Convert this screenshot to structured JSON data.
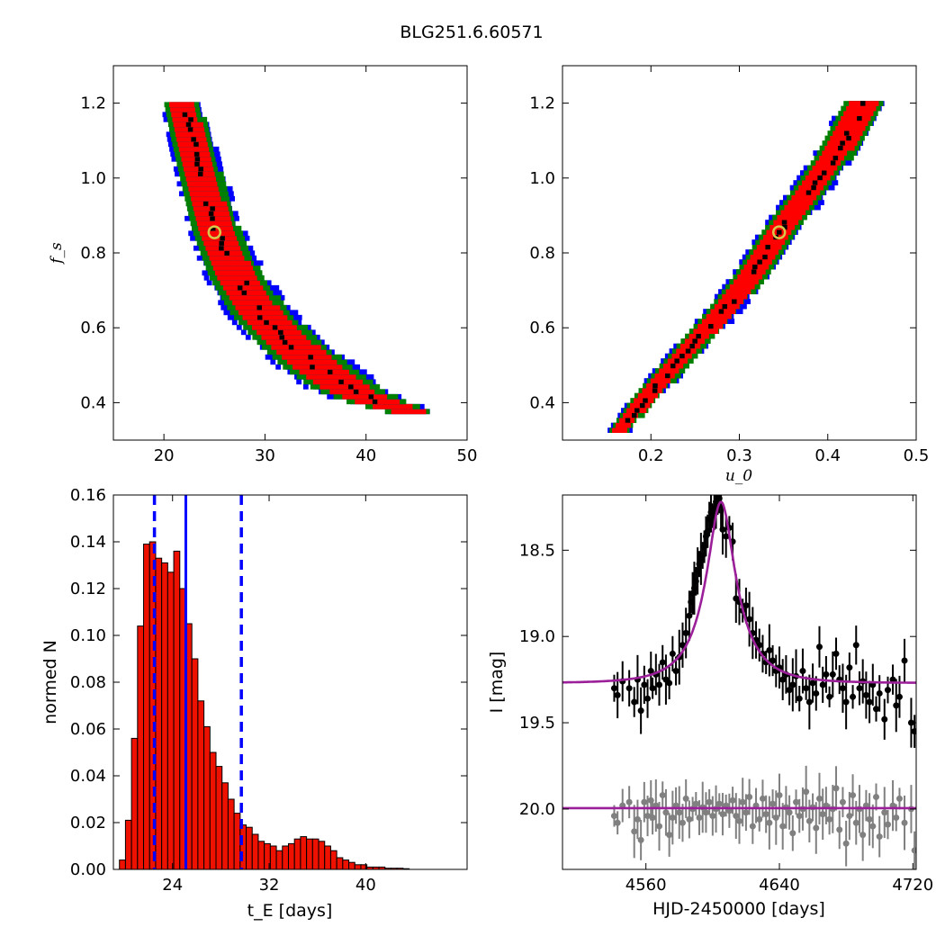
{
  "figure_title": "BLG251.6.60571",
  "chart_data": [
    {
      "type": "heatmap",
      "panel": "top-left",
      "xlabel": "",
      "ylabel": "f_s",
      "xlim": [
        15,
        50
      ],
      "ylim": [
        0.3,
        1.3
      ],
      "xticks": [
        "20",
        "30",
        "40",
        "50"
      ],
      "yticks": [
        "0.4",
        "0.6",
        "0.8",
        "1.0",
        "1.2"
      ],
      "best_fit": {
        "x": 25,
        "y": 0.855
      },
      "band": {
        "description_levels": [
          "blue",
          "green",
          "red",
          "black"
        ],
        "ridge_points": [
          [
            21.6,
            1.2
          ],
          [
            22.5,
            1.1
          ],
          [
            23.5,
            1.0
          ],
          [
            25,
            0.855
          ],
          [
            27,
            0.73
          ],
          [
            29.5,
            0.63
          ],
          [
            32.5,
            0.55
          ],
          [
            35,
            0.49
          ],
          [
            38,
            0.43
          ],
          [
            41,
            0.395
          ],
          [
            44,
            0.37
          ]
        ],
        "half_widths_x": [
          2.0,
          2.2,
          2.4,
          2.7,
          3.1,
          3.5,
          3.8,
          4.0,
          3.9,
          3.4,
          2.6
        ]
      },
      "colors": {
        "outer": "#0000ff",
        "mid": "#008000",
        "inner": "#ff0000",
        "core": "#000000",
        "marker": "#d8c84a"
      }
    },
    {
      "type": "heatmap",
      "panel": "top-right",
      "xlabel": "u_0",
      "ylabel": "",
      "xlim": [
        0.1,
        0.5
      ],
      "ylim": [
        0.3,
        1.3
      ],
      "xticks": [
        "0.2",
        "0.3",
        "0.4",
        "0.5"
      ],
      "yticks": [
        "0.4",
        "0.6",
        "0.8",
        "1.0",
        "1.2"
      ],
      "best_fit": {
        "x": 0.345,
        "y": 0.855
      },
      "band": {
        "ridge_points": [
          [
            0.163,
            0.32
          ],
          [
            0.19,
            0.4
          ],
          [
            0.22,
            0.48
          ],
          [
            0.25,
            0.56
          ],
          [
            0.28,
            0.64
          ],
          [
            0.31,
            0.73
          ],
          [
            0.345,
            0.855
          ],
          [
            0.375,
            0.95
          ],
          [
            0.405,
            1.05
          ],
          [
            0.44,
            1.2
          ]
        ],
        "half_widths_x": [
          0.012,
          0.016,
          0.018,
          0.019,
          0.02,
          0.021,
          0.022,
          0.023,
          0.024,
          0.025
        ]
      },
      "colors": {
        "outer": "#0000ff",
        "mid": "#008000",
        "inner": "#ff0000",
        "core": "#000000",
        "marker": "#d8c84a"
      }
    },
    {
      "type": "bar",
      "panel": "bottom-left",
      "xlabel": "t_E [days]",
      "ylabel": "normed N",
      "xlim": [
        19.1,
        48.4
      ],
      "ylim": [
        0,
        0.16
      ],
      "xticks": [
        "24",
        "32",
        "40"
      ],
      "yticks": [
        "0.00",
        "0.02",
        "0.04",
        "0.06",
        "0.08",
        "0.10",
        "0.12",
        "0.14",
        "0.16"
      ],
      "bin_start": 19.6,
      "bin_width": 0.5,
      "values": [
        0.004,
        0.021,
        0.056,
        0.104,
        0.139,
        0.14,
        0.133,
        0.131,
        0.127,
        0.136,
        0.12,
        0.105,
        0.09,
        0.072,
        0.061,
        0.05,
        0.044,
        0.037,
        0.03,
        0.024,
        0.019,
        0.018,
        0.015,
        0.012,
        0.011,
        0.01,
        0.008,
        0.01,
        0.011,
        0.013,
        0.014,
        0.013,
        0.013,
        0.012,
        0.01,
        0.008,
        0.005,
        0.004,
        0.003,
        0.002,
        0.002,
        0.001,
        0.001,
        0.001,
        0.0005,
        0.0005,
        0.0005,
        0.0003
      ],
      "median_line": 25.1,
      "bound_lines": [
        22.5,
        29.7
      ],
      "colors": {
        "bar": "#ee1100",
        "line": "#0000ff"
      }
    },
    {
      "type": "scatter",
      "panel": "bottom-right",
      "xlabel": "HJD-2450000 [days]",
      "ylabel": "I [mag]",
      "xlim": [
        4510,
        4722
      ],
      "ylim": [
        20.35,
        18.18
      ],
      "xticks": [
        "4560",
        "4640",
        "4720"
      ],
      "yticks": [
        "18.5",
        "19.0",
        "19.5",
        "20.0"
      ],
      "model": {
        "t0": 4605,
        "tE": 25,
        "u0": 0.345,
        "fs": 0.855,
        "base": 19.27,
        "flat": 19.995
      },
      "series": [
        {
          "color": "#000000",
          "points": [
            [
              4541,
              19.3
            ],
            [
              4543,
              19.34
            ],
            [
              4546,
              19.26
            ],
            [
              4550,
              19.3
            ],
            [
              4553,
              19.38
            ],
            [
              4555,
              19.25
            ],
            [
              4557,
              19.43
            ],
            [
              4559,
              19.28
            ],
            [
              4561,
              19.36
            ],
            [
              4563,
              19.2
            ],
            [
              4564,
              19.3
            ],
            [
              4566,
              19.22
            ],
            [
              4568,
              19.28
            ],
            [
              4570,
              19.15
            ],
            [
              4572,
              19.25
            ],
            [
              4574,
              19.27
            ],
            [
              4576,
              19.1
            ],
            [
              4578,
              19.2
            ],
            [
              4580,
              19.12
            ],
            [
              4582,
              19.05
            ],
            [
              4584,
              18.98
            ],
            [
              4586,
              18.88
            ],
            [
              4587,
              18.8
            ],
            [
              4588,
              18.75
            ],
            [
              4589,
              18.72
            ],
            [
              4590,
              18.68
            ],
            [
              4591,
              18.62
            ],
            [
              4592,
              18.58
            ],
            [
              4593,
              18.55
            ],
            [
              4594,
              18.53
            ],
            [
              4595,
              18.48
            ],
            [
              4596,
              18.42
            ],
            [
              4597,
              18.39
            ],
            [
              4598,
              18.32
            ],
            [
              4599,
              18.28
            ],
            [
              4600,
              18.3
            ],
            [
              4601,
              18.26
            ],
            [
              4602,
              18.22
            ],
            [
              4603,
              18.21
            ],
            [
              4604,
              18.2
            ],
            [
              4605,
              18.24
            ],
            [
              4606,
              18.38
            ],
            [
              4608,
              18.42
            ],
            [
              4610,
              18.37
            ],
            [
              4612,
              18.45
            ],
            [
              4614,
              18.78
            ],
            [
              4616,
              18.8
            ],
            [
              4618,
              18.85
            ],
            [
              4620,
              18.82
            ],
            [
              4622,
              18.9
            ],
            [
              4624,
              18.98
            ],
            [
              4626,
              19.02
            ],
            [
              4628,
              19.05
            ],
            [
              4630,
              19.1
            ],
            [
              4632,
              19.15
            ],
            [
              4634,
              19.08
            ],
            [
              4636,
              19.14
            ],
            [
              4638,
              19.2
            ],
            [
              4640,
              19.18
            ],
            [
              4642,
              19.25
            ],
            [
              4644,
              19.22
            ],
            [
              4646,
              19.31
            ],
            [
              4648,
              19.28
            ],
            [
              4650,
              19.23
            ],
            [
              4652,
              19.36
            ],
            [
              4654,
              19.2
            ],
            [
              4656,
              19.3
            ],
            [
              4658,
              19.38
            ],
            [
              4660,
              19.27
            ],
            [
              4662,
              19.33
            ],
            [
              4664,
              19.06
            ],
            [
              4666,
              19.28
            ],
            [
              4668,
              19.22
            ],
            [
              4670,
              19.35
            ],
            [
              4672,
              19.22
            ],
            [
              4674,
              19.1
            ],
            [
              4676,
              19.25
            ],
            [
              4678,
              19.3
            ],
            [
              4680,
              19.38
            ],
            [
              4682,
              19.18
            ],
            [
              4684,
              19.35
            ],
            [
              4686,
              19.05
            ],
            [
              4688,
              19.3
            ],
            [
              4690,
              19.26
            ],
            [
              4692,
              19.34
            ],
            [
              4694,
              19.38
            ],
            [
              4696,
              19.28
            ],
            [
              4698,
              19.42
            ],
            [
              4700,
              19.33
            ],
            [
              4703,
              19.48
            ],
            [
              4705,
              19.31
            ],
            [
              4708,
              19.25
            ],
            [
              4710,
              19.4
            ],
            [
              4712,
              19.35
            ],
            [
              4715,
              19.14
            ],
            [
              4719,
              19.5
            ],
            [
              4721,
              19.55
            ]
          ]
        },
        {
          "color": "#808080",
          "points": [
            [
              4541,
              20.04
            ],
            [
              4543,
              20.08
            ],
            [
              4546,
              19.98
            ],
            [
              4550,
              19.96
            ],
            [
              4553,
              20.13
            ],
            [
              4555,
              20.06
            ],
            [
              4557,
              20.18
            ],
            [
              4559,
              19.96
            ],
            [
              4561,
              20.04
            ],
            [
              4563,
              19.95
            ],
            [
              4564,
              20.05
            ],
            [
              4566,
              19.98
            ],
            [
              4568,
              20.1
            ],
            [
              4570,
              19.92
            ],
            [
              4572,
              20.02
            ],
            [
              4574,
              20.15
            ],
            [
              4576,
              20.05
            ],
            [
              4578,
              19.98
            ],
            [
              4580,
              20.02
            ],
            [
              4582,
              20.08
            ],
            [
              4584,
              19.94
            ],
            [
              4586,
              20.06
            ],
            [
              4588,
              20.0
            ],
            [
              4590,
              19.97
            ],
            [
              4592,
              20.05
            ],
            [
              4594,
              19.99
            ],
            [
              4596,
              20.02
            ],
            [
              4598,
              19.96
            ],
            [
              4600,
              20.04
            ],
            [
              4602,
              20.0
            ],
            [
              4604,
              19.97
            ],
            [
              4606,
              20.03
            ],
            [
              4608,
              19.98
            ],
            [
              4610,
              20.01
            ],
            [
              4612,
              19.95
            ],
            [
              4614,
              20.04
            ],
            [
              4616,
              20.07
            ],
            [
              4618,
              19.96
            ],
            [
              4620,
              20.02
            ],
            [
              4622,
              19.93
            ],
            [
              4624,
              20.1
            ],
            [
              4626,
              19.98
            ],
            [
              4628,
              20.06
            ],
            [
              4630,
              19.94
            ],
            [
              4632,
              20.03
            ],
            [
              4634,
              20.08
            ],
            [
              4636,
              19.97
            ],
            [
              4638,
              20.05
            ],
            [
              4640,
              19.92
            ],
            [
              4642,
              20.1
            ],
            [
              4644,
              19.99
            ],
            [
              4646,
              20.02
            ],
            [
              4648,
              20.14
            ],
            [
              4650,
              19.96
            ],
            [
              4652,
              20.04
            ],
            [
              4654,
              20.0
            ],
            [
              4656,
              19.9
            ],
            [
              4658,
              20.07
            ],
            [
              4660,
              19.99
            ],
            [
              4662,
              20.11
            ],
            [
              4664,
              19.94
            ],
            [
              4666,
              20.03
            ],
            [
              4668,
              19.98
            ],
            [
              4670,
              20.06
            ],
            [
              4672,
              20.0
            ],
            [
              4674,
              19.88
            ],
            [
              4676,
              20.12
            ],
            [
              4678,
              19.96
            ],
            [
              4680,
              20.2
            ],
            [
              4682,
              20.04
            ],
            [
              4684,
              19.92
            ],
            [
              4686,
              20.08
            ],
            [
              4688,
              20.0
            ],
            [
              4690,
              20.15
            ],
            [
              4692,
              19.98
            ],
            [
              4694,
              20.06
            ],
            [
              4696,
              20.1
            ],
            [
              4698,
              19.93
            ],
            [
              4700,
              20.16
            ],
            [
              4703,
              20.02
            ],
            [
              4705,
              20.09
            ],
            [
              4708,
              19.98
            ],
            [
              4710,
              20.05
            ],
            [
              4712,
              19.94
            ],
            [
              4715,
              20.08
            ],
            [
              4719,
              20.0
            ],
            [
              4721,
              20.24
            ]
          ]
        }
      ],
      "colors": {
        "model": "#9b1f99",
        "detected": "#000000",
        "residual": "#808080"
      }
    }
  ]
}
